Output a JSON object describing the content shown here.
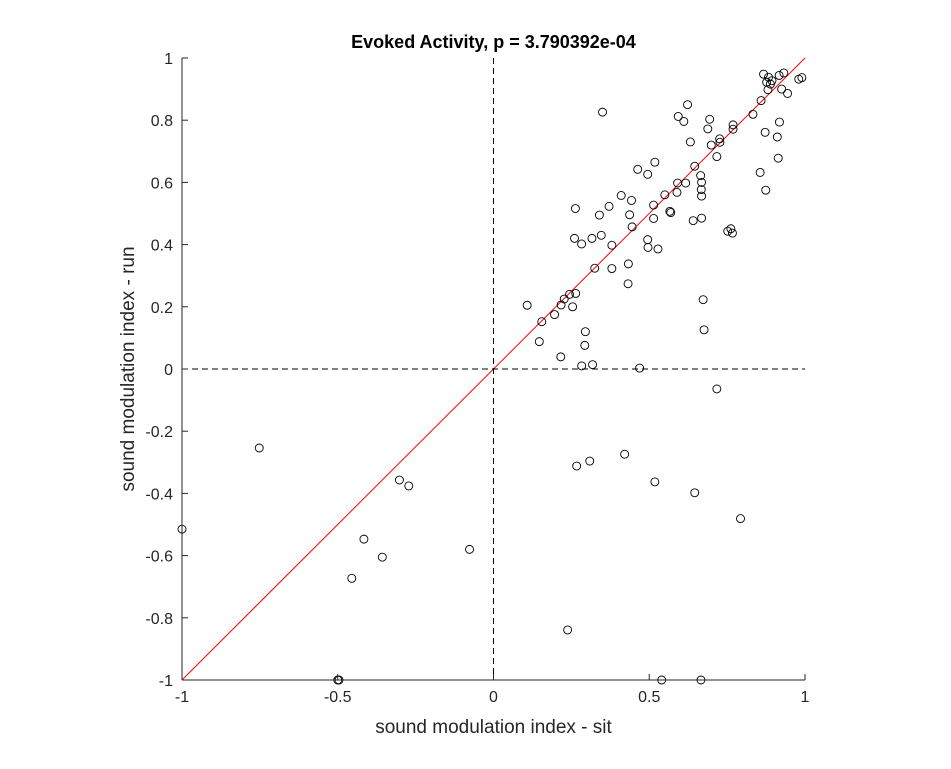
{
  "chart_data": {
    "type": "scatter",
    "title": "Evoked Activity, p = 3.790392e-04",
    "xlabel": "sound modulation index - sit",
    "ylabel": "sound modulation index - run",
    "xlim": [
      -1,
      1
    ],
    "ylim": [
      -1,
      1
    ],
    "xticks": [
      -1,
      -0.5,
      0,
      0.5,
      1
    ],
    "xtick_labels": [
      "-1",
      "-0.5",
      "0",
      "0.5",
      "1"
    ],
    "yticks": [
      -1,
      -0.8,
      -0.6,
      -0.4,
      -0.2,
      0,
      0.2,
      0.4,
      0.6,
      0.8,
      1
    ],
    "ytick_labels": [
      "-1",
      "-0.8",
      "-0.6",
      "-0.4",
      "-0.2",
      "0",
      "0.2",
      "0.4",
      "0.6",
      "0.8",
      "1"
    ],
    "grid": false,
    "colors": {
      "points": "#000000",
      "identity_line": "#ff0000",
      "zero_lines": "#000000",
      "axes": "#262626"
    },
    "reference_lines": [
      {
        "kind": "identity",
        "style": "solid",
        "color": "#ff0000",
        "from": [
          -1,
          -1
        ],
        "to": [
          1,
          1
        ]
      },
      {
        "kind": "x=0",
        "style": "dashed",
        "color": "#000000"
      },
      {
        "kind": "y=0",
        "style": "dashed",
        "color": "#000000"
      }
    ],
    "points": [
      [
        0.867,
        0.948
      ],
      [
        0.917,
        0.944
      ],
      [
        0.883,
        0.938
      ],
      [
        0.932,
        0.952
      ],
      [
        0.98,
        0.932
      ],
      [
        0.99,
        0.937
      ],
      [
        0.877,
        0.922
      ],
      [
        0.889,
        0.916
      ],
      [
        0.894,
        0.927
      ],
      [
        0.881,
        0.898
      ],
      [
        0.925,
        0.9
      ],
      [
        0.944,
        0.886
      ],
      [
        0.859,
        0.863
      ],
      [
        0.833,
        0.819
      ],
      [
        0.35,
        0.826
      ],
      [
        0.593,
        0.812
      ],
      [
        0.611,
        0.796
      ],
      [
        0.694,
        0.803
      ],
      [
        0.623,
        0.85
      ],
      [
        0.688,
        0.772
      ],
      [
        0.769,
        0.771
      ],
      [
        0.769,
        0.785
      ],
      [
        0.918,
        0.794
      ],
      [
        0.872,
        0.761
      ],
      [
        0.911,
        0.746
      ],
      [
        0.726,
        0.74
      ],
      [
        0.727,
        0.729
      ],
      [
        0.699,
        0.72
      ],
      [
        0.632,
        0.73
      ],
      [
        0.717,
        0.683
      ],
      [
        0.914,
        0.678
      ],
      [
        0.646,
        0.652
      ],
      [
        0.518,
        0.665
      ],
      [
        0.463,
        0.642
      ],
      [
        0.495,
        0.626
      ],
      [
        0.856,
        0.632
      ],
      [
        0.665,
        0.622
      ],
      [
        0.668,
        0.6
      ],
      [
        0.667,
        0.577
      ],
      [
        0.668,
        0.556
      ],
      [
        0.874,
        0.575
      ],
      [
        0.617,
        0.598
      ],
      [
        0.591,
        0.598
      ],
      [
        0.589,
        0.568
      ],
      [
        0.55,
        0.56
      ],
      [
        0.41,
        0.558
      ],
      [
        0.443,
        0.542
      ],
      [
        0.514,
        0.527
      ],
      [
        0.371,
        0.523
      ],
      [
        0.566,
        0.507
      ],
      [
        0.569,
        0.503
      ],
      [
        0.263,
        0.516
      ],
      [
        0.34,
        0.495
      ],
      [
        0.437,
        0.496
      ],
      [
        0.668,
        0.485
      ],
      [
        0.641,
        0.477
      ],
      [
        0.514,
        0.484
      ],
      [
        0.445,
        0.457
      ],
      [
        0.752,
        0.443
      ],
      [
        0.767,
        0.437
      ],
      [
        0.762,
        0.451
      ],
      [
        0.346,
        0.43
      ],
      [
        0.26,
        0.42
      ],
      [
        0.316,
        0.42
      ],
      [
        0.495,
        0.416
      ],
      [
        0.283,
        0.402
      ],
      [
        0.38,
        0.398
      ],
      [
        0.496,
        0.391
      ],
      [
        0.528,
        0.386
      ],
      [
        0.433,
        0.338
      ],
      [
        0.325,
        0.324
      ],
      [
        0.38,
        0.323
      ],
      [
        0.432,
        0.274
      ],
      [
        0.244,
        0.24
      ],
      [
        0.264,
        0.243
      ],
      [
        0.227,
        0.225
      ],
      [
        0.254,
        0.2
      ],
      [
        0.217,
        0.206
      ],
      [
        0.108,
        0.205
      ],
      [
        0.196,
        0.175
      ],
      [
        0.155,
        0.152
      ],
      [
        0.295,
        0.12
      ],
      [
        0.147,
        0.088
      ],
      [
        0.293,
        0.076
      ],
      [
        0.216,
        0.039
      ],
      [
        0.283,
        0.01
      ],
      [
        0.318,
        0.014
      ],
      [
        0.469,
        0.003
      ],
      [
        0.673,
        0.223
      ],
      [
        0.676,
        0.126
      ],
      [
        0.717,
        -0.064
      ],
      [
        0.421,
        -0.274
      ],
      [
        0.309,
        -0.296
      ],
      [
        0.267,
        -0.312
      ],
      [
        0.518,
        -0.363
      ],
      [
        0.646,
        -0.398
      ],
      [
        0.793,
        -0.481
      ],
      [
        0.238,
        -0.839
      ],
      [
        0.54,
        -1.0
      ],
      [
        0.666,
        -1.0
      ],
      [
        -0.752,
        -0.254
      ],
      [
        -0.302,
        -0.357
      ],
      [
        -0.272,
        -0.376
      ],
      [
        -0.416,
        -0.547
      ],
      [
        -0.357,
        -0.605
      ],
      [
        -0.077,
        -0.58
      ],
      [
        -0.455,
        -0.673
      ],
      [
        -1.0,
        -0.515
      ],
      [
        -0.5,
        -1.0
      ],
      [
        -0.496,
        -1.0
      ]
    ]
  }
}
